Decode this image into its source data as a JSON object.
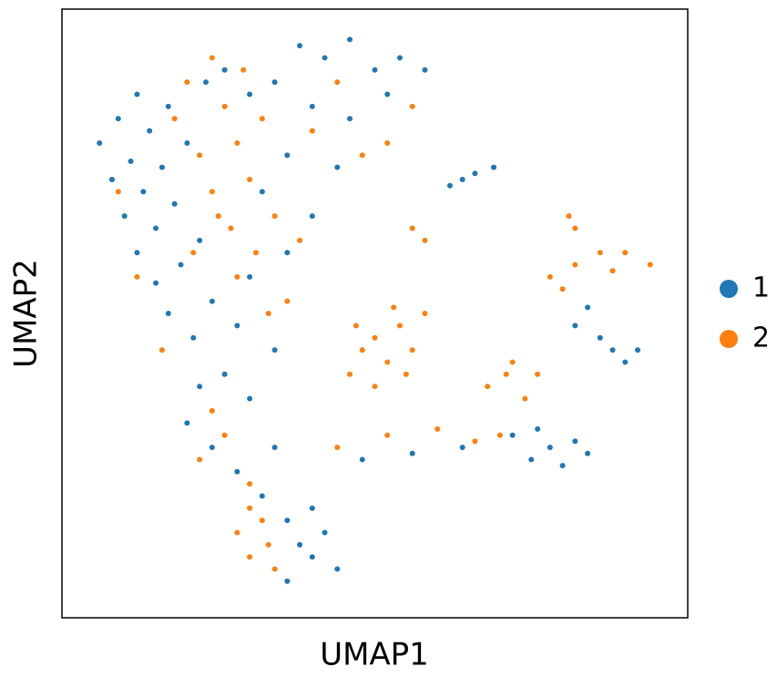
{
  "chart_data": {
    "type": "scatter",
    "xlabel": "UMAP1",
    "ylabel": "UMAP2",
    "xlim": [
      0,
      100
    ],
    "ylim": [
      0,
      100
    ],
    "series": [
      {
        "name": "1",
        "color": "#1f77b4",
        "x": [
          6,
          8,
          9,
          10,
          11,
          12,
          12,
          13,
          14,
          15,
          15,
          16,
          17,
          17,
          18,
          19,
          20,
          21,
          22,
          23,
          26,
          30,
          34,
          38,
          42,
          46,
          50,
          54,
          58,
          40,
          46,
          52,
          36,
          44,
          32,
          24,
          28,
          30,
          34,
          26,
          22,
          30,
          36,
          40,
          20,
          24,
          28,
          32,
          36,
          38,
          40,
          42,
          44,
          36,
          40,
          34,
          48,
          56,
          64,
          72,
          75,
          78,
          80,
          82,
          84,
          76,
          82,
          86,
          88,
          90,
          92,
          84,
          62,
          66,
          69,
          64
        ],
        "values": [
          78,
          72,
          82,
          66,
          75,
          86,
          60,
          70,
          80,
          55,
          64,
          74,
          84,
          50,
          68,
          58,
          78,
          46,
          62,
          88,
          90,
          86,
          88,
          94,
          92,
          95,
          90,
          92,
          90,
          84,
          82,
          86,
          76,
          74,
          70,
          52,
          48,
          56,
          44,
          40,
          38,
          36,
          60,
          66,
          32,
          28,
          24,
          20,
          16,
          12,
          10,
          14,
          8,
          6,
          18,
          28,
          26,
          27,
          28,
          30,
          26,
          28,
          25,
          29,
          27,
          31,
          48,
          46,
          44,
          42,
          44,
          51,
          71,
          73,
          74,
          72
        ]
      },
      {
        "name": "2",
        "color": "#ff7f0e",
        "x": [
          18,
          20,
          22,
          24,
          24,
          26,
          27,
          28,
          29,
          30,
          31,
          32,
          28,
          25,
          21,
          34,
          38,
          36,
          33,
          12,
          16,
          9,
          40,
          48,
          56,
          44,
          52,
          46,
          48,
          50,
          52,
          54,
          56,
          58,
          50,
          55,
          53,
          47,
          22,
          26,
          30,
          28,
          30,
          32,
          34,
          33,
          30,
          24,
          44,
          52,
          60,
          66,
          70,
          68,
          71,
          74,
          76,
          72,
          78,
          82,
          86,
          90,
          94,
          88,
          80,
          81,
          82,
          56,
          58
        ],
        "values": [
          82,
          88,
          76,
          92,
          70,
          84,
          64,
          78,
          90,
          72,
          60,
          82,
          56,
          66,
          60,
          66,
          62,
          52,
          50,
          56,
          44,
          70,
          80,
          76,
          84,
          88,
          78,
          40,
          44,
          46,
          42,
          48,
          44,
          50,
          38,
          40,
          51,
          48,
          26,
          30,
          22,
          14,
          10,
          16,
          8,
          12,
          18,
          34,
          28,
          30,
          31,
          29,
          30,
          38,
          40,
          36,
          40,
          42,
          56,
          58,
          60,
          60,
          58,
          57,
          54,
          66,
          64,
          64,
          62
        ]
      }
    ]
  }
}
